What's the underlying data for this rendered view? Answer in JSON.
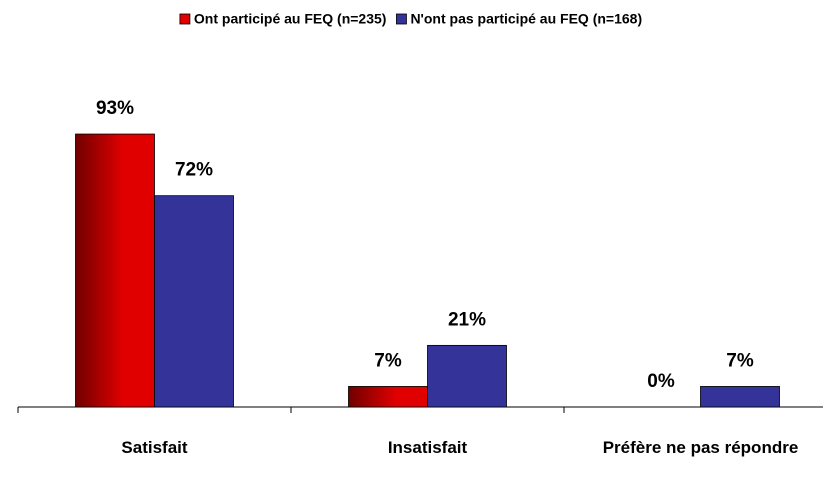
{
  "chart_data": {
    "type": "bar",
    "categories": [
      "Satisfait",
      "Insatisfait",
      "Préfère ne pas répondre"
    ],
    "series": [
      {
        "name": "Ont participé au FEQ (n=235)",
        "color": "#e00000",
        "values": [
          93,
          7,
          0
        ],
        "value_labels": [
          "93%",
          "7%",
          "0%"
        ]
      },
      {
        "name": "N'ont pas participé au FEQ (n=168)",
        "color": "#333399",
        "values": [
          72,
          21,
          7
        ],
        "value_labels": [
          "72%",
          "21%",
          "7%"
        ]
      }
    ],
    "legend": "top"
  }
}
